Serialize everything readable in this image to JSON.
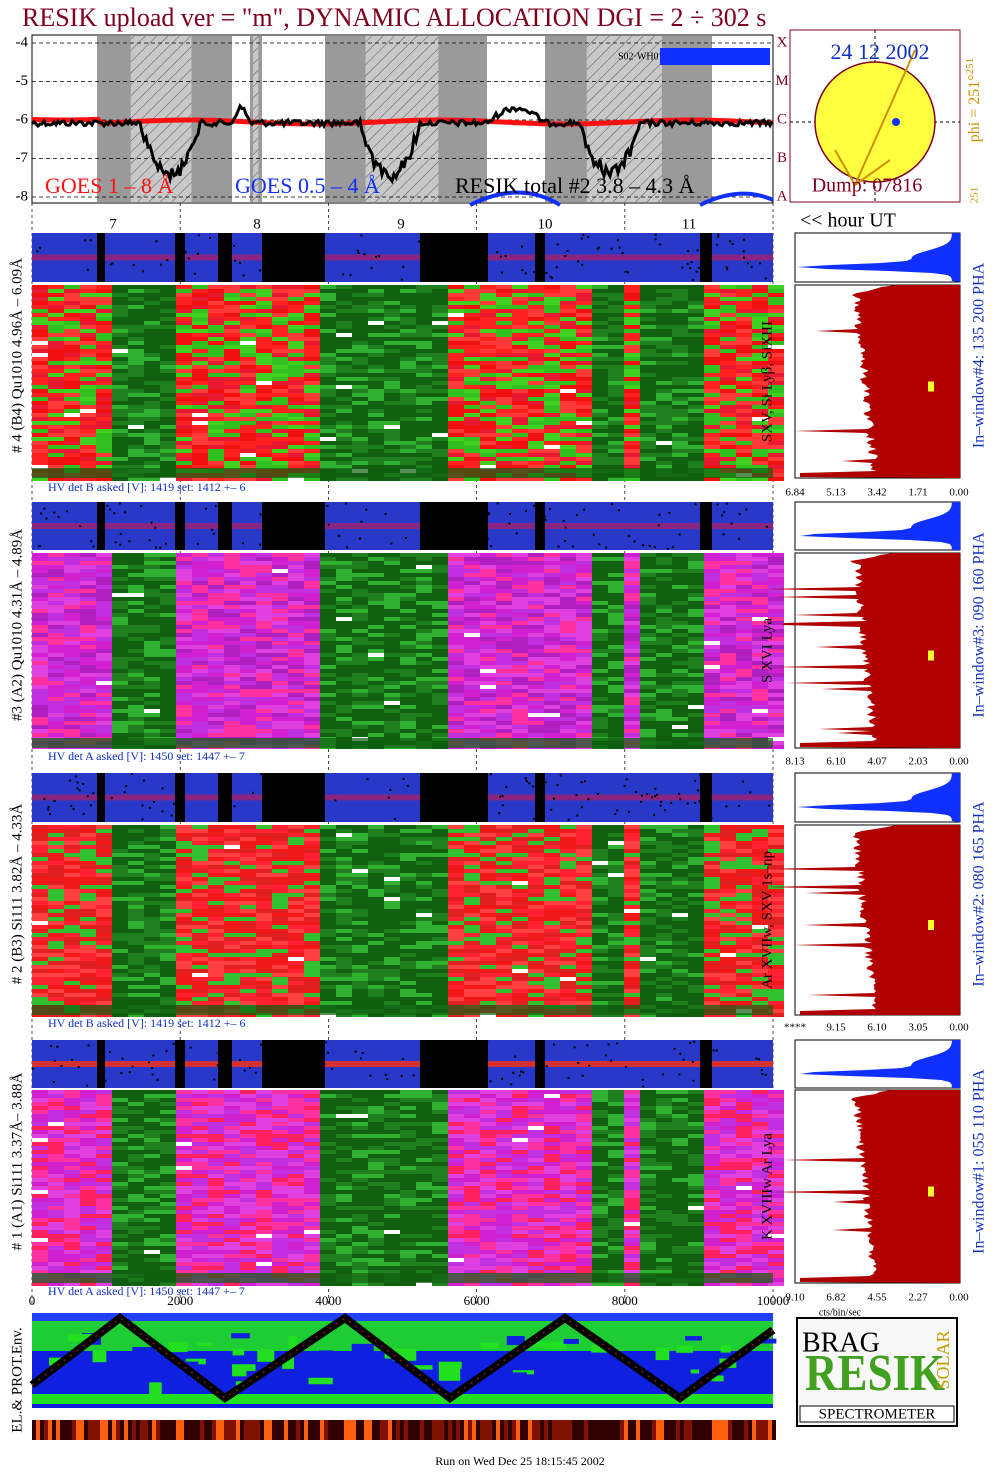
{
  "title": "RESIK upload ver = \"m\", DYNAMIC ALLOCATION  DGI =   2 ÷ 302 s",
  "goes": {
    "yticks": [
      -4,
      -5,
      -6,
      -7,
      -8
    ],
    "class_letters": [
      "X",
      "M",
      "C",
      "B",
      "A"
    ],
    "legend": [
      "GOES 1 – 8 Å",
      "GOES 0.5 – 4 Å",
      "RESIK total #2  3.8 – 4.3 Å"
    ],
    "tag": "S02·WH0"
  },
  "sun": {
    "date": "24 12 2002",
    "dump": "Dump: 07816",
    "phi": "phi = 251°",
    "phi_sup": "251",
    "corner": "251"
  },
  "hours": {
    "labels": [
      7,
      8,
      9,
      10,
      11
    ],
    "unit": "<< hour UT"
  },
  "detectors": [
    {
      "label": "# 4 (B4) Qu1010 4.96Å – 6.09Å",
      "lines": "SXV, Si Lyβ, SiXIII",
      "window": "In–window#4:  135 200 PHA",
      "hv": "HV det B asked [V]:  1419 set:  1412 +–   6",
      "ticks": [
        "6.84",
        "5.13",
        "3.42",
        "1.71",
        "0.00"
      ]
    },
    {
      "label": "#3 (A2) Qu1010  4.31Å – 4.89Å",
      "lines": "S XVI Lya",
      "window": "In–window#3:  090 160 PHA",
      "hv": "HV det A asked [V]:  1450 set:  1447 +–    7",
      "ticks": [
        "8.13",
        "6.10",
        "4.07",
        "2.03",
        "0.00"
      ]
    },
    {
      "label": "# 2 (B3) Si111  3.82Å – 4.33Å",
      "lines": "Ar XVIIw,  SXV 1s–np",
      "window": "In–window#2:  080 165 PHA",
      "hv": "HV det B asked [V]:  1419 set:  1412 +–   6",
      "ticks": [
        "****",
        "9.15",
        "6.10",
        "3.05",
        "0.00"
      ]
    },
    {
      "label": "# 1 (A1) Si111  3.37Å– 3.88Å",
      "lines": "K XVIIIw  Ar Lya",
      "window": "In–window#1:  055 110 PHA",
      "hv": "HV det A asked [V]:  1450 set:  1447 +–    7",
      "ticks": [
        "9.10",
        "6.82",
        "4.55",
        "2.27",
        "0.00"
      ]
    }
  ],
  "sample_axis": [
    0,
    2000,
    4000,
    6000,
    8000,
    10000
  ],
  "rate_unit": "cts/bin/sec",
  "env_label": "EL.& PROT.Env.",
  "logo": {
    "top": "BRAG",
    "side": "SOLAR",
    "word": "RESIK",
    "name": "SPECTROMETER"
  },
  "footer": "Run on Wed Dec 25 18:15:45 2002"
}
